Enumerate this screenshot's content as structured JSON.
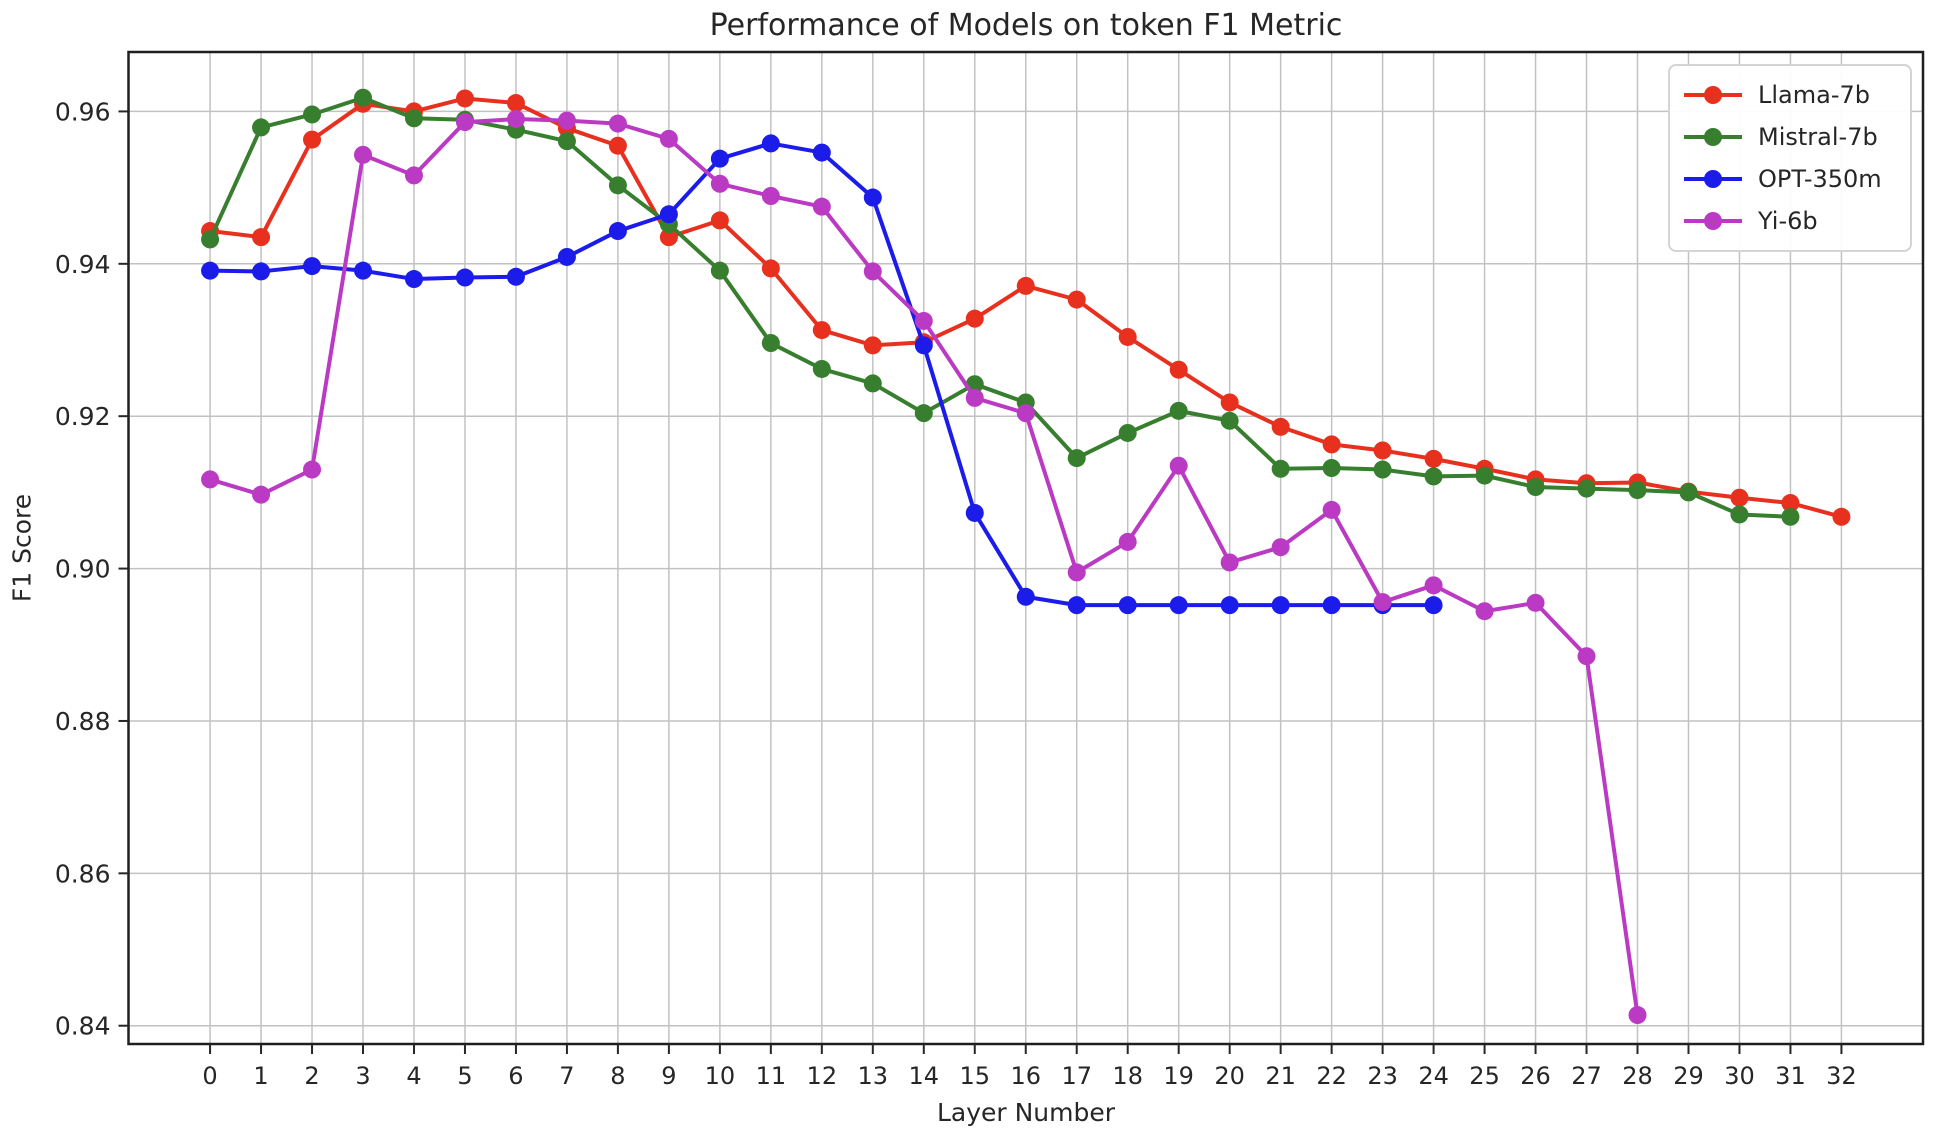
{
  "chart_data": {
    "type": "line",
    "title": "Performance of Models on token F1 Metric",
    "xlabel": "Layer Number",
    "ylabel": "F1 Score",
    "grid": true,
    "legend_position": "upper right",
    "xlim": [
      -1.6,
      33.6
    ],
    "ylim": [
      0.8376,
      0.9678
    ],
    "x_ticks": [
      0,
      1,
      2,
      3,
      4,
      5,
      6,
      7,
      8,
      9,
      10,
      11,
      12,
      13,
      14,
      15,
      16,
      17,
      18,
      19,
      20,
      21,
      22,
      23,
      24,
      25,
      26,
      27,
      28,
      29,
      30,
      31,
      32
    ],
    "y_ticks": [
      0.84,
      0.86,
      0.88,
      0.9,
      0.92,
      0.94,
      0.96
    ],
    "y_tick_labels": [
      "0.84",
      "0.86",
      "0.88",
      "0.90",
      "0.92",
      "0.94",
      "0.96"
    ],
    "series": [
      {
        "name": "Llama-7b",
        "color": "#e8301f",
        "x": [
          0,
          1,
          2,
          3,
          4,
          5,
          6,
          7,
          8,
          9,
          10,
          11,
          12,
          13,
          14,
          15,
          16,
          17,
          18,
          19,
          20,
          21,
          22,
          23,
          24,
          25,
          26,
          27,
          28,
          29,
          30,
          31,
          32
        ],
        "y": [
          0.9443,
          0.9435,
          0.9563,
          0.961,
          0.96,
          0.9617,
          0.9611,
          0.9578,
          0.9555,
          0.9435,
          0.9457,
          0.9394,
          0.9313,
          0.9293,
          0.9297,
          0.9328,
          0.9371,
          0.9353,
          0.9304,
          0.9261,
          0.9218,
          0.9186,
          0.9163,
          0.9155,
          0.9144,
          0.9131,
          0.9117,
          0.9112,
          0.9113,
          0.9101,
          0.9093,
          0.9086,
          0.9068
        ]
      },
      {
        "name": "Mistral-7b",
        "color": "#377f2e",
        "x": [
          0,
          1,
          2,
          3,
          4,
          5,
          6,
          7,
          8,
          9,
          10,
          11,
          12,
          13,
          14,
          15,
          16,
          17,
          18,
          19,
          20,
          21,
          22,
          23,
          24,
          25,
          26,
          27,
          28,
          29,
          30,
          31
        ],
        "y": [
          0.9432,
          0.9579,
          0.9596,
          0.9618,
          0.9591,
          0.9589,
          0.9576,
          0.9561,
          0.9503,
          0.9452,
          0.9391,
          0.9296,
          0.9262,
          0.9243,
          0.9204,
          0.9242,
          0.9218,
          0.9145,
          0.9178,
          0.9207,
          0.9194,
          0.9131,
          0.9132,
          0.913,
          0.9121,
          0.9122,
          0.9107,
          0.9105,
          0.9103,
          0.91,
          0.9071,
          0.9068
        ]
      },
      {
        "name": "OPT-350m",
        "color": "#1c1cea",
        "x": [
          0,
          1,
          2,
          3,
          4,
          5,
          6,
          7,
          8,
          9,
          10,
          11,
          12,
          13,
          14,
          15,
          16,
          17,
          18,
          19,
          20,
          21,
          22,
          23,
          24
        ],
        "y": [
          0.9391,
          0.939,
          0.9397,
          0.9391,
          0.938,
          0.9382,
          0.9383,
          0.9409,
          0.9443,
          0.9465,
          0.9538,
          0.9558,
          0.9546,
          0.9487,
          0.9293,
          0.9073,
          0.8963,
          0.8952,
          0.8952,
          0.8952,
          0.8952,
          0.8952,
          0.8952,
          0.8952,
          0.8952
        ]
      },
      {
        "name": "Yi-6b",
        "color": "#bb3ac4",
        "x": [
          0,
          1,
          2,
          3,
          4,
          5,
          6,
          7,
          8,
          9,
          10,
          11,
          12,
          13,
          14,
          15,
          16,
          17,
          18,
          19,
          20,
          21,
          22,
          23,
          24,
          25,
          26,
          27,
          28
        ],
        "y": [
          0.9117,
          0.9097,
          0.913,
          0.9543,
          0.9516,
          0.9586,
          0.959,
          0.9588,
          0.9584,
          0.9564,
          0.9505,
          0.9489,
          0.9475,
          0.939,
          0.9325,
          0.9224,
          0.9204,
          0.8995,
          0.9035,
          0.9135,
          0.9008,
          0.9028,
          0.9077,
          0.8956,
          0.8978,
          0.8944,
          0.8955,
          0.8885,
          0.8414
        ]
      }
    ],
    "style": {
      "grid_color": "#c2c2c2",
      "spine_color": "#1f1f1f",
      "tick_color": "#262626",
      "background": "#ffffff",
      "marker_radius": 9,
      "line_width": 4
    }
  }
}
